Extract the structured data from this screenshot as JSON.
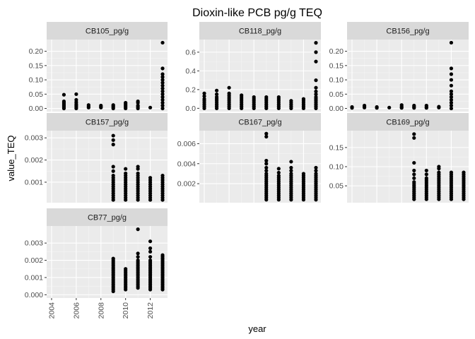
{
  "chart_data": {
    "type": "scatter",
    "title": "Dioxin-like PCB pg/g TEQ",
    "xlabel": "year",
    "ylabel": "value_TEQ",
    "xlim": [
      2003.6,
      2013.4
    ],
    "x_ticks": [
      2004,
      2006,
      2008,
      2010,
      2012
    ],
    "facet_scales": "free_y",
    "colors": {
      "panel_bg": "#ebebeb",
      "grid_major": "#ffffff",
      "grid_minor": "#f5f5f5",
      "strip_bg": "#d9d9d9",
      "point": "#000000",
      "tick": "#333333"
    },
    "panels": [
      {
        "name": "CB105_pg/g",
        "ylim": [
          -0.011,
          0.241
        ],
        "y_ticks": [
          0.0,
          0.05,
          0.1,
          0.15,
          0.2
        ],
        "y_tick_labels": [
          "0.00",
          "0.05",
          "0.10",
          "0.15",
          "0.20"
        ],
        "points": [
          {
            "x": 2005,
            "y": [
              0.0,
              0.005,
              0.01,
              0.015,
              0.02,
              0.025,
              0.048
            ]
          },
          {
            "x": 2006,
            "y": [
              0.0,
              0.005,
              0.01,
              0.015,
              0.022,
              0.03,
              0.05
            ]
          },
          {
            "x": 2007,
            "y": [
              0.003,
              0.007,
              0.012
            ]
          },
          {
            "x": 2008,
            "y": [
              0.003,
              0.006,
              0.01
            ]
          },
          {
            "x": 2009,
            "y": [
              0.0,
              0.004,
              0.008,
              0.012
            ]
          },
          {
            "x": 2010,
            "y": [
              0.0,
              0.005,
              0.01,
              0.015,
              0.02
            ]
          },
          {
            "x": 2011,
            "y": [
              0.0,
              0.005,
              0.01,
              0.02,
              0.025
            ]
          },
          {
            "x": 2012,
            "y": [
              0.003
            ]
          },
          {
            "x": 2013,
            "y": [
              0.0,
              0.01,
              0.02,
              0.03,
              0.04,
              0.05,
              0.06,
              0.07,
              0.08,
              0.09,
              0.1,
              0.11,
              0.12,
              0.14,
              0.23
            ]
          }
        ]
      },
      {
        "name": "CB118_pg/g",
        "ylim": [
          -0.035,
          0.735
        ],
        "y_ticks": [
          0.0,
          0.2,
          0.4,
          0.6
        ],
        "y_tick_labels": [
          "0.0",
          "0.2",
          "0.4",
          "0.6"
        ],
        "points": [
          {
            "x": 2004,
            "y": [
              0.0,
              0.02,
              0.04,
              0.06,
              0.08,
              0.1,
              0.13,
              0.16
            ]
          },
          {
            "x": 2005,
            "y": [
              0.0,
              0.02,
              0.04,
              0.06,
              0.08,
              0.1,
              0.12,
              0.15,
              0.19
            ]
          },
          {
            "x": 2006,
            "y": [
              0.0,
              0.02,
              0.04,
              0.06,
              0.08,
              0.1,
              0.12,
              0.14,
              0.16,
              0.22
            ]
          },
          {
            "x": 2007,
            "y": [
              0.0,
              0.02,
              0.04,
              0.06,
              0.08,
              0.1,
              0.12,
              0.14
            ]
          },
          {
            "x": 2008,
            "y": [
              0.0,
              0.02,
              0.04,
              0.06,
              0.08,
              0.1,
              0.12
            ]
          },
          {
            "x": 2009,
            "y": [
              0.0,
              0.02,
              0.04,
              0.06,
              0.08,
              0.1,
              0.12
            ]
          },
          {
            "x": 2010,
            "y": [
              0.0,
              0.02,
              0.04,
              0.06,
              0.08,
              0.1,
              0.12
            ]
          },
          {
            "x": 2011,
            "y": [
              0.0,
              0.02,
              0.04,
              0.06,
              0.08
            ]
          },
          {
            "x": 2012,
            "y": [
              0.0,
              0.02,
              0.04,
              0.06,
              0.08,
              0.1
            ]
          },
          {
            "x": 2013,
            "y": [
              0.0,
              0.02,
              0.04,
              0.06,
              0.08,
              0.1,
              0.12,
              0.15,
              0.18,
              0.22,
              0.3,
              0.5,
              0.6,
              0.7
            ]
          }
        ]
      },
      {
        "name": "CB156_pg/g",
        "ylim": [
          -0.011,
          0.241
        ],
        "y_ticks": [
          0.0,
          0.05,
          0.1,
          0.15,
          0.2
        ],
        "y_tick_labels": [
          "0.00",
          "0.05",
          "0.10",
          "0.15",
          "0.20"
        ],
        "points": [
          {
            "x": 2004,
            "y": [
              0.002,
              0.005
            ]
          },
          {
            "x": 2005,
            "y": [
              0.003,
              0.007,
              0.01
            ]
          },
          {
            "x": 2006,
            "y": [
              0.002,
              0.005
            ]
          },
          {
            "x": 2007,
            "y": [
              0.003
            ]
          },
          {
            "x": 2008,
            "y": [
              0.002,
              0.006,
              0.012
            ]
          },
          {
            "x": 2009,
            "y": [
              0.002,
              0.006,
              0.01
            ]
          },
          {
            "x": 2010,
            "y": [
              0.002,
              0.005,
              0.01
            ]
          },
          {
            "x": 2011,
            "y": [
              0.003,
              0.006
            ]
          },
          {
            "x": 2012,
            "y": [
              0.0,
              0.01,
              0.02,
              0.03,
              0.04,
              0.05,
              0.06,
              0.08,
              0.1,
              0.12,
              0.14,
              0.23
            ]
          }
        ]
      },
      {
        "name": "CB157_pg/g",
        "ylim": [
          7.5e-05,
          0.003325
        ],
        "y_ticks": [
          0.001,
          0.002,
          0.003
        ],
        "y_tick_labels": [
          "0.001",
          "0.002",
          "0.003"
        ],
        "points": [
          {
            "x": 2009,
            "y": [
              0.0002,
              0.0003,
              0.0004,
              0.0005,
              0.0006,
              0.0007,
              0.0008,
              0.0009,
              0.001,
              0.0011,
              0.0012,
              0.0013,
              0.0015,
              0.0017,
              0.0027,
              0.0029,
              0.0031
            ]
          },
          {
            "x": 2010,
            "y": [
              0.0002,
              0.0003,
              0.0004,
              0.0005,
              0.0006,
              0.0007,
              0.0008,
              0.0009,
              0.001,
              0.0011,
              0.0012,
              0.0013,
              0.0014,
              0.0016
            ]
          },
          {
            "x": 2011,
            "y": [
              0.0002,
              0.0003,
              0.0004,
              0.0005,
              0.0006,
              0.0007,
              0.0008,
              0.0009,
              0.001,
              0.0011,
              0.0012,
              0.0013,
              0.0014,
              0.0016,
              0.0017
            ]
          },
          {
            "x": 2012,
            "y": [
              0.0002,
              0.0003,
              0.0004,
              0.0005,
              0.0006,
              0.0007,
              0.0008,
              0.0009,
              0.001,
              0.0011,
              0.0012
            ]
          },
          {
            "x": 2013,
            "y": [
              0.0002,
              0.0003,
              0.0004,
              0.0005,
              0.0006,
              0.0007,
              0.0008,
              0.0009,
              0.001,
              0.0011,
              0.0012,
              0.0013
            ]
          }
        ]
      },
      {
        "name": "CB167_pg/g",
        "ylim": [
          0.0001,
          0.0073
        ],
        "y_ticks": [
          0.002,
          0.004,
          0.006
        ],
        "y_tick_labels": [
          "0.002",
          "0.004",
          "0.006"
        ],
        "points": [
          {
            "x": 2009,
            "y": [
              0.0004,
              0.0006,
              0.0008,
              0.001,
              0.0012,
              0.0014,
              0.0016,
              0.0018,
              0.002,
              0.0022,
              0.0024,
              0.0026,
              0.0028,
              0.003,
              0.0033,
              0.0036,
              0.004,
              0.0043,
              0.0067,
              0.007
            ]
          },
          {
            "x": 2010,
            "y": [
              0.0004,
              0.0006,
              0.0008,
              0.001,
              0.0012,
              0.0014,
              0.0016,
              0.0018,
              0.002,
              0.0022,
              0.0024,
              0.0026,
              0.0028,
              0.0031,
              0.0035
            ]
          },
          {
            "x": 2011,
            "y": [
              0.0004,
              0.0006,
              0.0008,
              0.001,
              0.0012,
              0.0014,
              0.0016,
              0.0018,
              0.002,
              0.0022,
              0.0024,
              0.0026,
              0.0028,
              0.003,
              0.0033,
              0.0036,
              0.0042
            ]
          },
          {
            "x": 2012,
            "y": [
              0.0004,
              0.0006,
              0.0008,
              0.001,
              0.0012,
              0.0014,
              0.0016,
              0.0018,
              0.002,
              0.0022,
              0.0024,
              0.0026,
              0.0028,
              0.003
            ]
          },
          {
            "x": 2013,
            "y": [
              0.0004,
              0.0006,
              0.0008,
              0.001,
              0.0012,
              0.0014,
              0.0016,
              0.0018,
              0.002,
              0.0022,
              0.0024,
              0.0026,
              0.0028,
              0.003,
              0.0033,
              0.0036
            ]
          }
        ]
      },
      {
        "name": "CB169_pg/g",
        "ylim": [
          0.006,
          0.194
        ],
        "y_ticks": [
          0.05,
          0.1,
          0.15
        ],
        "y_tick_labels": [
          "0.05",
          "0.10",
          "0.15"
        ],
        "points": [
          {
            "x": 2009,
            "y": [
              0.015,
              0.02,
              0.025,
              0.03,
              0.035,
              0.04,
              0.045,
              0.05,
              0.055,
              0.06,
              0.07,
              0.08,
              0.09,
              0.11,
              0.175,
              0.185
            ]
          },
          {
            "x": 2010,
            "y": [
              0.015,
              0.02,
              0.025,
              0.03,
              0.035,
              0.04,
              0.045,
              0.05,
              0.055,
              0.06,
              0.065,
              0.07,
              0.08,
              0.09
            ]
          },
          {
            "x": 2011,
            "y": [
              0.015,
              0.02,
              0.025,
              0.03,
              0.035,
              0.04,
              0.045,
              0.05,
              0.055,
              0.06,
              0.065,
              0.07,
              0.075,
              0.08,
              0.085,
              0.095,
              0.1
            ]
          },
          {
            "x": 2012,
            "y": [
              0.015,
              0.02,
              0.025,
              0.03,
              0.035,
              0.04,
              0.045,
              0.05,
              0.055,
              0.06,
              0.065,
              0.07,
              0.075,
              0.08,
              0.085
            ]
          },
          {
            "x": 2013,
            "y": [
              0.015,
              0.02,
              0.025,
              0.03,
              0.035,
              0.04,
              0.045,
              0.05,
              0.055,
              0.06,
              0.065,
              0.07,
              0.075,
              0.08,
              0.085
            ]
          }
        ]
      },
      {
        "name": "CB77_pg/g",
        "ylim": [
          -0.00019,
          0.00399
        ],
        "y_ticks": [
          0.0,
          0.001,
          0.002,
          0.003
        ],
        "y_tick_labels": [
          "0.000",
          "0.001",
          "0.002",
          "0.003"
        ],
        "points": [
          {
            "x": 2009,
            "y": [
              0.0002,
              0.0003,
              0.0004,
              0.0005,
              0.0006,
              0.0007,
              0.0008,
              0.0009,
              0.001,
              0.0011,
              0.0012,
              0.0013,
              0.0014,
              0.0015,
              0.0016,
              0.0017,
              0.0018,
              0.0019,
              0.002,
              0.0021
            ]
          },
          {
            "x": 2010,
            "y": [
              0.0003,
              0.0004,
              0.0005,
              0.0006,
              0.0007,
              0.0008,
              0.0009,
              0.001,
              0.0011,
              0.0012,
              0.0013,
              0.0014,
              0.0015
            ]
          },
          {
            "x": 2011,
            "y": [
              0.0004,
              0.0005,
              0.0006,
              0.0007,
              0.0008,
              0.0009,
              0.001,
              0.0011,
              0.0012,
              0.0013,
              0.0014,
              0.0015,
              0.0016,
              0.0017,
              0.0018,
              0.0019,
              0.002,
              0.0022,
              0.0024,
              0.0038
            ]
          },
          {
            "x": 2012,
            "y": [
              0.0003,
              0.0004,
              0.0005,
              0.0006,
              0.0007,
              0.0008,
              0.0009,
              0.001,
              0.0011,
              0.0012,
              0.0013,
              0.0014,
              0.0015,
              0.0016,
              0.0017,
              0.0018,
              0.0019,
              0.002,
              0.0022,
              0.0025,
              0.0027,
              0.0031
            ]
          },
          {
            "x": 2013,
            "y": [
              0.0003,
              0.0004,
              0.0005,
              0.0006,
              0.0007,
              0.0008,
              0.0009,
              0.001,
              0.0011,
              0.0012,
              0.0013,
              0.0014,
              0.0015,
              0.0016,
              0.0017,
              0.0018,
              0.0019,
              0.002,
              0.0021,
              0.0022,
              0.0023
            ]
          }
        ]
      }
    ]
  }
}
